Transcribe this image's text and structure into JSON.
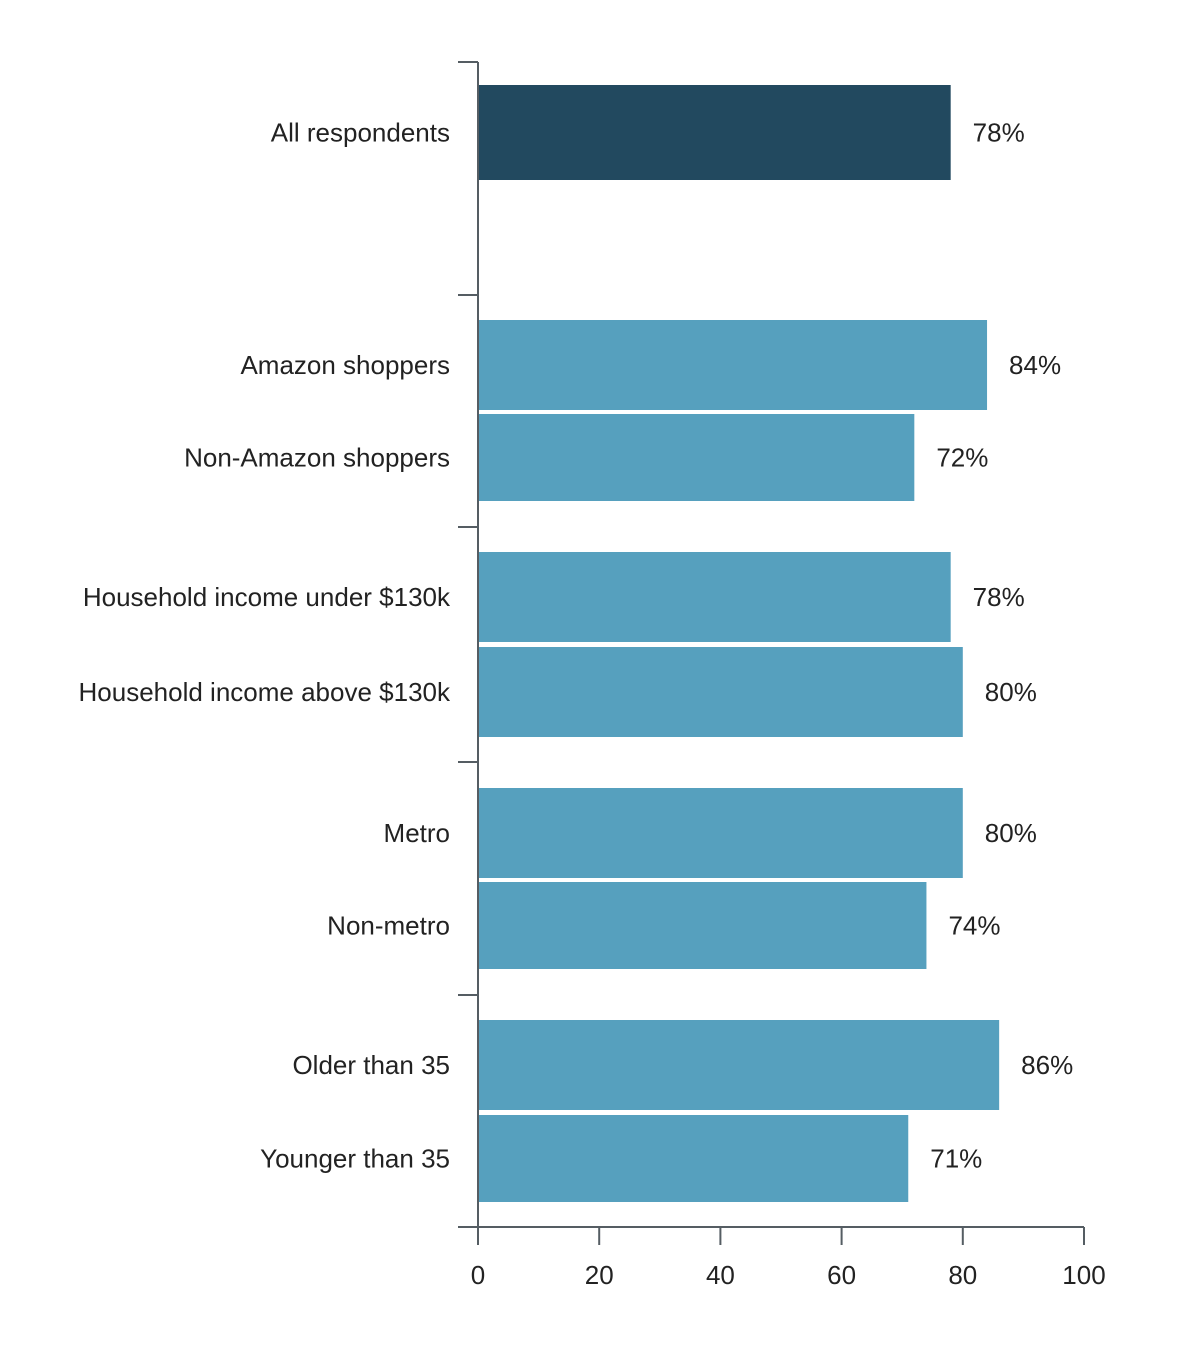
{
  "chart_data": {
    "type": "bar",
    "orientation": "horizontal",
    "categories": [
      "All respondents",
      "Amazon shoppers",
      "Non-Amazon shoppers",
      "Household income under $130k",
      "Household income above $130k",
      "Metro",
      "Non-metro",
      "Older than 35",
      "Younger than 35"
    ],
    "values": [
      78,
      84,
      72,
      78,
      80,
      80,
      74,
      86,
      71
    ],
    "value_labels": [
      "78%",
      "84%",
      "72%",
      "78%",
      "80%",
      "80%",
      "74%",
      "86%",
      "71%"
    ],
    "groups": [
      [
        0
      ],
      [
        1,
        2
      ],
      [
        3,
        4
      ],
      [
        5,
        6
      ],
      [
        7,
        8
      ]
    ],
    "highlight_index": 0,
    "colors": {
      "highlight": "#22495f",
      "bar": "#56a0be",
      "axis": "#555d63",
      "text": "#222222"
    },
    "x_ticks": [
      "0",
      "20",
      "40",
      "60",
      "80",
      "100"
    ],
    "xlim": [
      0,
      100
    ],
    "grid": false,
    "legend": "none"
  }
}
